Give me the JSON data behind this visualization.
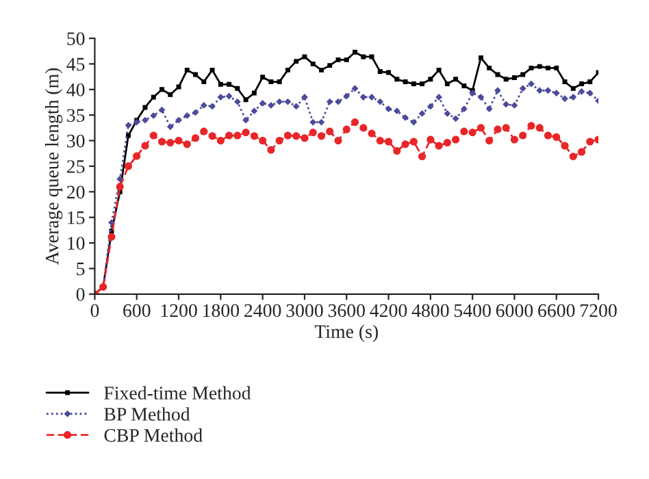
{
  "chart_data": {
    "type": "line",
    "xlabel": "Time (s)",
    "ylabel": "Average queue length (m)",
    "x": [
      0,
      120,
      240,
      360,
      480,
      600,
      720,
      840,
      960,
      1080,
      1200,
      1320,
      1440,
      1560,
      1680,
      1800,
      1920,
      2040,
      2160,
      2280,
      2400,
      2520,
      2640,
      2760,
      2880,
      3000,
      3120,
      3240,
      3360,
      3480,
      3600,
      3720,
      3840,
      3960,
      4080,
      4200,
      4320,
      4440,
      4560,
      4680,
      4800,
      4920,
      5040,
      5160,
      5280,
      5400,
      5520,
      5640,
      5760,
      5880,
      6000,
      6120,
      6240,
      6360,
      6480,
      6600,
      6720,
      6840,
      6960,
      7080,
      7200
    ],
    "xlim": [
      0,
      7200
    ],
    "xticks": [
      0,
      600,
      1200,
      1800,
      2400,
      3000,
      3600,
      4200,
      4800,
      5400,
      6000,
      6600,
      7200
    ],
    "ylim": [
      0,
      50
    ],
    "yticks": [
      0,
      5,
      10,
      15,
      20,
      25,
      30,
      35,
      40,
      45,
      50
    ],
    "grid": false,
    "legend": "bottom",
    "series": [
      {
        "name": "Fixed-time Method",
        "color": "#000000",
        "marker": "square",
        "line_style": "solid",
        "values": [
          0,
          1.4,
          12.3,
          20,
          31,
          34,
          36.5,
          38.5,
          40,
          39,
          40.5,
          43.8,
          42.9,
          41.5,
          43.8,
          41,
          41,
          40.2,
          38,
          39.3,
          42.4,
          41.5,
          41.5,
          43.8,
          45.5,
          46.4,
          45,
          43.8,
          44.7,
          45.8,
          45.8,
          47.3,
          46.4,
          46.4,
          43.5,
          43.3,
          42,
          41.5,
          41.1,
          41.1,
          42,
          43.8,
          41.1,
          42,
          40.7,
          39.8,
          46.2,
          44.2,
          42.9,
          42,
          42.3,
          42.9,
          44.2,
          44.5,
          44.2,
          44.2,
          41.5,
          40.2,
          41.1,
          41.5,
          43.3
        ]
      },
      {
        "name": "BP Method",
        "color": "#4b4b9b",
        "marker": "diamond",
        "line_style": "dotted",
        "values": [
          0,
          1.4,
          14,
          22.5,
          33,
          33.6,
          34,
          34.9,
          36,
          32.7,
          34,
          34.9,
          35.5,
          36.9,
          36.7,
          38.5,
          38.7,
          37.6,
          34,
          35.8,
          37.3,
          36.9,
          37.6,
          37.6,
          36.7,
          38.5,
          33.6,
          33.6,
          37.6,
          37.6,
          38.7,
          40.2,
          38.5,
          38.5,
          37.6,
          36.2,
          35.8,
          34.5,
          33.6,
          35.3,
          36.7,
          38.5,
          35.3,
          34.3,
          36.2,
          39.3,
          38.5,
          36.2,
          39.8,
          37.1,
          36.9,
          40.2,
          41.1,
          39.8,
          39.8,
          39.3,
          38.2,
          38.5,
          39.6,
          39.3,
          37.8
        ]
      },
      {
        "name": "CBP Method",
        "color": "#e8262a",
        "marker": "circle",
        "line_style": "dashed",
        "values": [
          0,
          1.4,
          11.2,
          21,
          25,
          27,
          29,
          31,
          29.8,
          29.6,
          30,
          29.3,
          30.5,
          31.8,
          30.9,
          30,
          31,
          31,
          31.6,
          30.9,
          30,
          28.2,
          30,
          31,
          30.9,
          30.5,
          31.6,
          30.9,
          31.8,
          30,
          32.2,
          33.6,
          32.5,
          31.4,
          30,
          29.8,
          28,
          29.3,
          29.8,
          26.9,
          30.2,
          29,
          29.6,
          30.2,
          31.8,
          31.6,
          32.5,
          30,
          32.2,
          32.5,
          30.2,
          31,
          32.9,
          32.5,
          31,
          30.7,
          29,
          26.9,
          27.8,
          29.8,
          30.2
        ]
      }
    ]
  }
}
